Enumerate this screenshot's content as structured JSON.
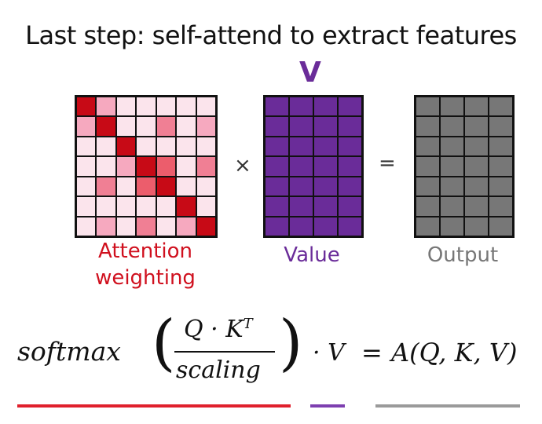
{
  "title": "Last step: self-attend to extract features",
  "value_marker": "V",
  "operators": {
    "times": "×",
    "equals": "="
  },
  "captions": {
    "attention_line1": "Attention",
    "attention_line2": "weighting",
    "value": "Value",
    "output": "Output"
  },
  "formula": {
    "softmax": "softmax",
    "lparen": "(",
    "numerator": "Q · K",
    "numerator_sup": "T",
    "denominator": "scaling",
    "rparen": ")",
    "dot_v": "· V",
    "equals": "=",
    "result": "A(Q, K, V)"
  },
  "colors": {
    "attention_red": "#d0101e",
    "value_purple": "#6a2c99",
    "output_gray": "#777777",
    "underline_red": "#e0202c",
    "underline_purple": "#7d3fb0",
    "underline_gray": "#9a9a9a"
  },
  "attention_matrix": [
    [
      4,
      1,
      0,
      0,
      0,
      0,
      0
    ],
    [
      1,
      4,
      0,
      0,
      2,
      0,
      1
    ],
    [
      0,
      0,
      4,
      0,
      0,
      0,
      0
    ],
    [
      0,
      0,
      1,
      4,
      3,
      0,
      2
    ],
    [
      0,
      2,
      0,
      3,
      4,
      0,
      0
    ],
    [
      0,
      0,
      0,
      0,
      0,
      4,
      0
    ],
    [
      0,
      1,
      0,
      2,
      0,
      1,
      4
    ]
  ],
  "value_matrix_shape": [
    7,
    4
  ],
  "output_matrix_shape": [
    7,
    4
  ]
}
